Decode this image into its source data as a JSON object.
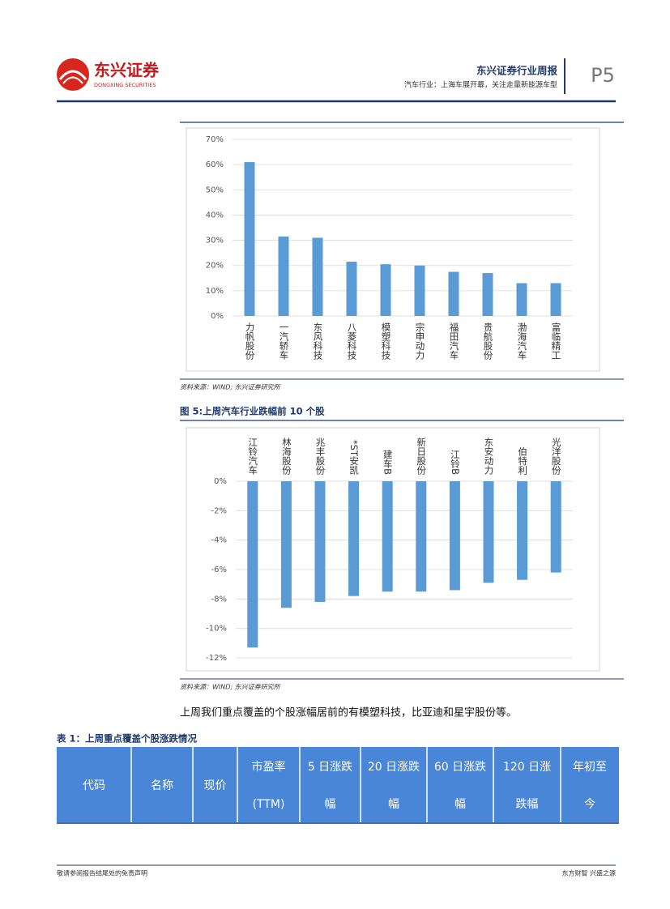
{
  "header": {
    "logo_cn": "东兴证券",
    "logo_en": "DONGXING SECURITIES",
    "title": "东兴证券行业周报",
    "subtitle": "汽车行业：上海车展开幕，关注走量新能源车型",
    "page": "P5"
  },
  "chart_data": [
    {
      "type": "bar",
      "color": "#5b9bd5",
      "grid": true,
      "categories": [
        "力帆股份",
        "一汽轿车",
        "东风科技",
        "八菱科技",
        "模塑科技",
        "宗申动力",
        "福田汽车",
        "贵航股份",
        "渤海汽车",
        "富临精工"
      ],
      "values": [
        61,
        31.5,
        31,
        21.5,
        20.5,
        20,
        17.5,
        17,
        13,
        13
      ],
      "ylim": [
        0,
        70
      ],
      "yticks": [
        {
          "value": 0,
          "label": "0%"
        },
        {
          "value": 10,
          "label": "10%"
        },
        {
          "value": 20,
          "label": "20%"
        },
        {
          "value": 30,
          "label": "30%"
        },
        {
          "value": 40,
          "label": "40%"
        },
        {
          "value": 50,
          "label": "50%"
        },
        {
          "value": 60,
          "label": "60%"
        },
        {
          "value": 70,
          "label": "70%"
        }
      ],
      "source": "资料来源：WIND; 东兴证券研究所"
    },
    {
      "type": "bar",
      "color": "#5b9bd5",
      "grid": true,
      "title": "图 5:上周汽车行业跌幅前 10 个股",
      "categories": [
        "江铃汽车",
        "林海股份",
        "兆丰股份",
        "*ST安凯",
        "建车B",
        "新日股份",
        "江铃B",
        "东安动力",
        "伯特利",
        "光洋股份"
      ],
      "values": [
        -11.3,
        -8.6,
        -8.2,
        -7.8,
        -7.5,
        -7.5,
        -7.4,
        -6.9,
        -6.7,
        -6.2
      ],
      "ylim": [
        -12,
        0
      ],
      "yticks": [
        {
          "value": -12,
          "label": "-12%"
        },
        {
          "value": -10,
          "label": "-10%"
        },
        {
          "value": -8,
          "label": "-8%"
        },
        {
          "value": -6,
          "label": "-6%"
        },
        {
          "value": -4,
          "label": "-4%"
        },
        {
          "value": -2,
          "label": "-2%"
        },
        {
          "value": 0,
          "label": "0%"
        }
      ],
      "source": "资料来源：WIND; 东兴证券研究所"
    }
  ],
  "body_text": "上周我们重点覆盖的个股涨幅居前的有模塑科技，比亚迪和星宇股份等。",
  "table": {
    "title": "表 1：上周重点覆盖个股涨跌情况",
    "header": [
      [
        "代码"
      ],
      [
        "名称"
      ],
      [
        "现价"
      ],
      [
        "市盈率",
        "(TTM)"
      ],
      [
        "5 日涨跌",
        "幅"
      ],
      [
        "20 日涨跌",
        "幅"
      ],
      [
        "60 日涨跌",
        "幅"
      ],
      [
        "120 日涨",
        "跌幅"
      ],
      [
        "年初至",
        "今"
      ]
    ]
  },
  "footer": {
    "left": "敬请参阅报告结尾处的免责声明",
    "right": "东方财智 兴盛之源"
  }
}
